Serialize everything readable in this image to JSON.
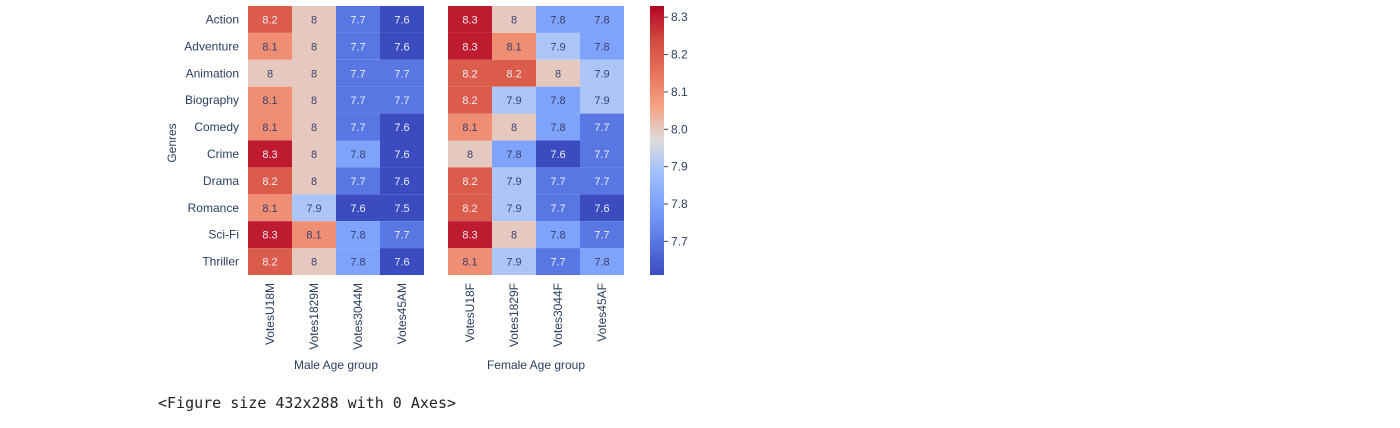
{
  "output_text": "<Figure size 432x288 with 0 Axes>",
  "chart_data": {
    "type": "heatmap",
    "colormap": "coolwarm",
    "y_label": "Genres",
    "rows": [
      "Action",
      "Adventure",
      "Animation",
      "Biography",
      "Comedy",
      "Crime",
      "Drama",
      "Romance",
      "Sci-Fi",
      "Thriller"
    ],
    "colorbar": {
      "ticks": [
        "8.3",
        "8.2",
        "8.1",
        "8.0",
        "7.9",
        "7.8",
        "7.7"
      ],
      "range": [
        7.61,
        8.33
      ]
    },
    "panels": [
      {
        "x_label": "Male Age group",
        "columns": [
          "VotesU18M",
          "Votes1829M",
          "Votes3044M",
          "Votes45AM"
        ],
        "values": [
          [
            8.2,
            8.0,
            7.7,
            7.6
          ],
          [
            8.1,
            8.0,
            7.7,
            7.6
          ],
          [
            8.0,
            8.0,
            7.7,
            7.7
          ],
          [
            8.1,
            8.0,
            7.7,
            7.7
          ],
          [
            8.1,
            8.0,
            7.7,
            7.6
          ],
          [
            8.3,
            8.0,
            7.8,
            7.6
          ],
          [
            8.2,
            8.0,
            7.7,
            7.6
          ],
          [
            8.1,
            7.9,
            7.6,
            7.5
          ],
          [
            8.3,
            8.1,
            7.8,
            7.7
          ],
          [
            8.2,
            8.0,
            7.8,
            7.6
          ]
        ]
      },
      {
        "x_label": "Female Age group",
        "columns": [
          "VotesU18F",
          "Votes1829F",
          "Votes3044F",
          "Votes45AF"
        ],
        "values": [
          [
            8.3,
            8.0,
            7.8,
            7.8
          ],
          [
            8.3,
            8.1,
            7.9,
            7.8
          ],
          [
            8.2,
            8.2,
            8.0,
            7.9
          ],
          [
            8.2,
            7.9,
            7.8,
            7.9
          ],
          [
            8.1,
            8.0,
            7.8,
            7.7
          ],
          [
            8.0,
            7.8,
            7.6,
            7.7
          ],
          [
            8.2,
            7.9,
            7.7,
            7.7
          ],
          [
            8.2,
            7.9,
            7.7,
            7.6
          ],
          [
            8.3,
            8.0,
            7.8,
            7.7
          ],
          [
            8.1,
            7.9,
            7.7,
            7.8
          ]
        ]
      }
    ]
  }
}
